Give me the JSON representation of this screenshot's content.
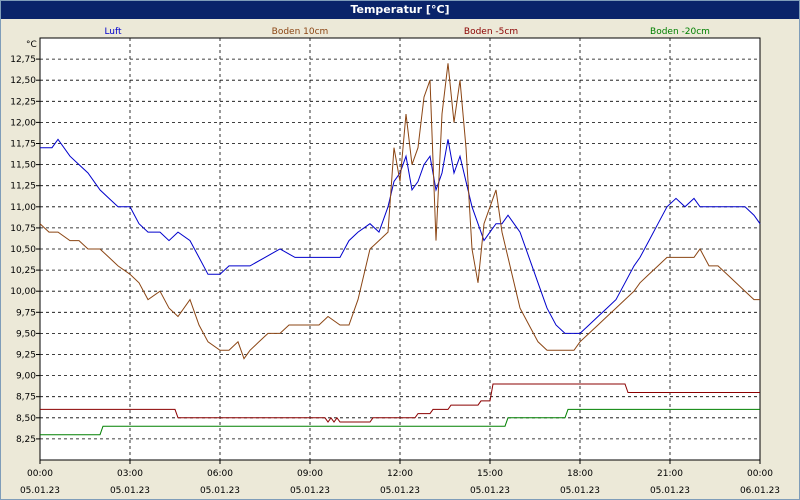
{
  "window": {
    "title": "Temperatur [°C]"
  },
  "colors": {
    "Luft": "#0000cc",
    "Boden 10cm": "#8b4513",
    "Boden -5cm": "#8b0000",
    "Boden -20cm": "#008000"
  },
  "chart_data": {
    "type": "line",
    "title": "Temperatur [°C]",
    "ylabel": "°C",
    "xlabel": "",
    "ylim": [
      8.0,
      13.0
    ],
    "grid": true,
    "legend_placement": "top",
    "y_ticks": [
      "12,75",
      "12,50",
      "12,25",
      "12,00",
      "11,75",
      "11,50",
      "11,25",
      "11,00",
      "10,75",
      "10,50",
      "10,25",
      "10,00",
      "9,75",
      "9,50",
      "9,25",
      "9,00",
      "8,75",
      "8,50",
      "8,25"
    ],
    "y_tick_values": [
      12.75,
      12.5,
      12.25,
      12.0,
      11.75,
      11.5,
      11.25,
      11.0,
      10.75,
      10.5,
      10.25,
      10.0,
      9.75,
      9.5,
      9.25,
      9.0,
      8.75,
      8.5,
      8.25
    ],
    "x_ticks": [
      {
        "time": "00:00",
        "date": "05.01.23"
      },
      {
        "time": "03:00",
        "date": "05.01.23"
      },
      {
        "time": "06:00",
        "date": "05.01.23"
      },
      {
        "time": "09:00",
        "date": "05.01.23"
      },
      {
        "time": "12:00",
        "date": "05.01.23"
      },
      {
        "time": "15:00",
        "date": "05.01.23"
      },
      {
        "time": "18:00",
        "date": "05.01.23"
      },
      {
        "time": "21:00",
        "date": "05.01.23"
      },
      {
        "time": "00:00",
        "date": "06.01.23"
      }
    ],
    "x_unit": "hours",
    "xlim": [
      0,
      24
    ],
    "series": [
      {
        "name": "Luft",
        "x": [
          0,
          0.4,
          0.6,
          1,
          1.3,
          1.6,
          2,
          2.3,
          2.6,
          3,
          3.3,
          3.6,
          4,
          4.3,
          4.6,
          5,
          5.3,
          5.6,
          6,
          6.3,
          6.6,
          7,
          7.5,
          8,
          8.5,
          9,
          9.5,
          10,
          10.3,
          10.6,
          11,
          11.3,
          11.6,
          11.8,
          12,
          12.2,
          12.4,
          12.6,
          12.8,
          13,
          13.2,
          13.4,
          13.6,
          13.8,
          14,
          14.2,
          14.4,
          14.6,
          14.8,
          15,
          15.2,
          15.4,
          15.6,
          15.8,
          16,
          16.3,
          16.6,
          16.9,
          17.2,
          17.5,
          17.8,
          18,
          18.3,
          18.6,
          18.9,
          19.2,
          19.5,
          19.8,
          20,
          20.3,
          20.6,
          20.9,
          21.2,
          21.5,
          21.8,
          22,
          22.3,
          22.6,
          22.9,
          23.2,
          23.5,
          23.8,
          24
        ],
        "y": [
          11.7,
          11.7,
          11.8,
          11.6,
          11.5,
          11.4,
          11.2,
          11.1,
          11.0,
          11.0,
          10.8,
          10.7,
          10.7,
          10.6,
          10.7,
          10.6,
          10.4,
          10.2,
          10.2,
          10.3,
          10.3,
          10.3,
          10.4,
          10.5,
          10.4,
          10.4,
          10.4,
          10.4,
          10.6,
          10.7,
          10.8,
          10.7,
          11.0,
          11.3,
          11.4,
          11.6,
          11.2,
          11.3,
          11.5,
          11.6,
          11.2,
          11.4,
          11.8,
          11.4,
          11.6,
          11.3,
          11.0,
          10.8,
          10.6,
          10.7,
          10.8,
          10.8,
          10.9,
          10.8,
          10.7,
          10.4,
          10.1,
          9.8,
          9.6,
          9.5,
          9.5,
          9.5,
          9.6,
          9.7,
          9.8,
          9.9,
          10.1,
          10.3,
          10.4,
          10.6,
          10.8,
          11.0,
          11.1,
          11.0,
          11.1,
          11.0,
          11.0,
          11.0,
          11.0,
          11.0,
          11.0,
          10.9,
          10.8
        ]
      },
      {
        "name": "Boden 10cm",
        "x": [
          0,
          0.3,
          0.6,
          1,
          1.3,
          1.6,
          2,
          2.3,
          2.6,
          3,
          3.3,
          3.6,
          4,
          4.3,
          4.6,
          5,
          5.3,
          5.6,
          6,
          6.3,
          6.6,
          6.8,
          7,
          7.3,
          7.6,
          8,
          8.3,
          8.6,
          9,
          9.3,
          9.6,
          10,
          10.3,
          10.6,
          11,
          11.3,
          11.6,
          11.8,
          12,
          12.2,
          12.4,
          12.6,
          12.8,
          13,
          13.2,
          13.4,
          13.6,
          13.8,
          14,
          14.2,
          14.4,
          14.6,
          14.8,
          15,
          15.2,
          15.4,
          15.6,
          15.8,
          16,
          16.3,
          16.6,
          16.9,
          17.2,
          17.5,
          17.8,
          18,
          18.3,
          18.6,
          18.9,
          19.2,
          19.5,
          19.8,
          20,
          20.3,
          20.6,
          20.9,
          21.2,
          21.5,
          21.8,
          22,
          22.3,
          22.6,
          22.9,
          23.2,
          23.5,
          23.8,
          24
        ],
        "y": [
          10.8,
          10.7,
          10.7,
          10.6,
          10.6,
          10.5,
          10.5,
          10.4,
          10.3,
          10.2,
          10.1,
          9.9,
          10.0,
          9.8,
          9.7,
          9.9,
          9.6,
          9.4,
          9.3,
          9.3,
          9.4,
          9.2,
          9.3,
          9.4,
          9.5,
          9.5,
          9.6,
          9.6,
          9.6,
          9.6,
          9.7,
          9.6,
          9.6,
          9.9,
          10.5,
          10.6,
          10.7,
          11.7,
          11.3,
          12.1,
          11.5,
          11.7,
          12.3,
          12.5,
          10.6,
          12.1,
          12.7,
          12.0,
          12.5,
          11.7,
          10.5,
          10.1,
          10.8,
          11.0,
          11.2,
          10.7,
          10.4,
          10.1,
          9.8,
          9.6,
          9.4,
          9.3,
          9.3,
          9.3,
          9.3,
          9.4,
          9.5,
          9.6,
          9.7,
          9.8,
          9.9,
          10.0,
          10.1,
          10.2,
          10.3,
          10.4,
          10.4,
          10.4,
          10.4,
          10.5,
          10.3,
          10.3,
          10.2,
          10.1,
          10.0,
          9.9,
          9.9
        ]
      },
      {
        "name": "Boden -5cm",
        "x": [
          0,
          4.5,
          4.6,
          9.5,
          9.6,
          9.7,
          9.8,
          9.9,
          10.0,
          11.0,
          11.1,
          11.2,
          12.5,
          12.6,
          13.0,
          13.1,
          13.6,
          13.7,
          14.6,
          14.7,
          15.0,
          15.1,
          19.5,
          19.6,
          24
        ],
        "y": [
          8.6,
          8.6,
          8.5,
          8.5,
          8.45,
          8.5,
          8.45,
          8.5,
          8.45,
          8.45,
          8.5,
          8.5,
          8.5,
          8.55,
          8.55,
          8.6,
          8.6,
          8.65,
          8.65,
          8.7,
          8.7,
          8.9,
          8.9,
          8.8,
          8.8
        ]
      },
      {
        "name": "Boden -20cm",
        "x": [
          0,
          2.0,
          2.1,
          15.5,
          15.6,
          17.5,
          17.6,
          24
        ],
        "y": [
          8.3,
          8.3,
          8.4,
          8.4,
          8.5,
          8.5,
          8.6,
          8.6
        ]
      }
    ]
  }
}
